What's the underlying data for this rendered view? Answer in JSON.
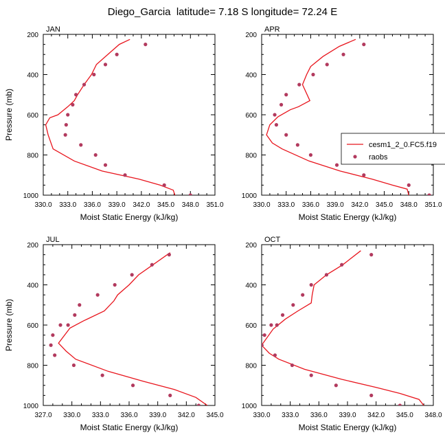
{
  "figure": {
    "title": "Diego_Garcia  latitude= 7.18 S longitude= 72.24 E",
    "ylabel": "Pressure (mb)",
    "xlabel": "Moist Static Energy (kJ/kg)"
  },
  "legend": {
    "model_label": "cesm1_2_0.FC5.f19",
    "obs_label": "raobs"
  },
  "colors": {
    "model": "#e8141c",
    "obs": "#b23a5e"
  },
  "chart_data": [
    {
      "type": "line",
      "title": "JAN",
      "xlabel": "Moist Static Energy (kJ/kg)",
      "ylabel": "Pressure (mb)",
      "xlim": [
        330,
        351
      ],
      "ylim": [
        1000,
        200
      ],
      "xticks": [
        "330.0",
        "333.0",
        "336.0",
        "339.0",
        "342.0",
        "345.0",
        "348.0",
        "351.0"
      ],
      "yticks": [
        "200",
        "400",
        "600",
        "800",
        "1000"
      ],
      "series": [
        {
          "name": "cesm1_2_0.FC5.f19",
          "kind": "line",
          "x": [
            340.6,
            339.3,
            337.9,
            336.5,
            335.9,
            335.0,
            334.2,
            333.8,
            333.0,
            331.8,
            330.8,
            330.3,
            330.6,
            331.2,
            333.8,
            337.2,
            341.7,
            344.3,
            345.9,
            346.1
          ],
          "y": [
            225,
            250,
            300,
            350,
            400,
            450,
            500,
            530,
            560,
            600,
            615,
            650,
            700,
            770,
            830,
            880,
            920,
            950,
            975,
            1000
          ]
        },
        {
          "name": "raobs",
          "kind": "scatter",
          "x": [
            342.5,
            339.0,
            337.6,
            336.2,
            335.0,
            334.0,
            333.6,
            333.0,
            332.8,
            332.7,
            334.6,
            336.4,
            337.6,
            340.0,
            344.8,
            348.0
          ],
          "y": [
            250,
            300,
            350,
            400,
            450,
            500,
            550,
            600,
            650,
            700,
            750,
            800,
            850,
            900,
            950,
            1000
          ]
        }
      ]
    },
    {
      "type": "line",
      "title": "APR",
      "xlabel": "Moist Static Energy (kJ/kg)",
      "ylabel": "Pressure (mb)",
      "xlim": [
        330,
        351
      ],
      "ylim": [
        1000,
        200
      ],
      "xticks": [
        "330.0",
        "333.0",
        "336.0",
        "339.0",
        "342.0",
        "345.0",
        "348.0",
        "351.0"
      ],
      "yticks": [
        "200",
        "400",
        "600",
        "800",
        "1000"
      ],
      "series": [
        {
          "name": "cesm1_2_0.FC5.f19",
          "kind": "line",
          "x": [
            341.5,
            339.5,
            337.5,
            336.0,
            335.5,
            335.0,
            335.9,
            334.5,
            333.5,
            332.0,
            331.0,
            330.6,
            331.3,
            332.5,
            335.8,
            339.6,
            343.5,
            346.0,
            347.8,
            348.0
          ],
          "y": [
            225,
            260,
            310,
            360,
            400,
            450,
            530,
            560,
            575,
            610,
            650,
            700,
            740,
            770,
            830,
            880,
            920,
            950,
            970,
            1000
          ]
        },
        {
          "name": "raobs",
          "kind": "scatter",
          "x": [
            342.5,
            340.0,
            338.0,
            336.3,
            334.6,
            333.0,
            332.4,
            331.6,
            331.8,
            333.0,
            334.4,
            336.0,
            339.2,
            342.5,
            348.0,
            350.5
          ],
          "y": [
            250,
            300,
            350,
            400,
            450,
            500,
            550,
            600,
            650,
            700,
            750,
            800,
            850,
            900,
            950,
            1000
          ]
        }
      ]
    },
    {
      "type": "line",
      "title": "JUL",
      "xlabel": "Moist Static Energy (kJ/kg)",
      "ylabel": "Pressure (mb)",
      "xlim": [
        327,
        345
      ],
      "ylim": [
        1000,
        200
      ],
      "xticks": [
        "327.0",
        "330.0",
        "333.0",
        "336.0",
        "339.0",
        "342.0",
        "345.0"
      ],
      "yticks": [
        "200",
        "400",
        "600",
        "800",
        "1000"
      ],
      "series": [
        {
          "name": "cesm1_2_0.FC5.f19",
          "kind": "line",
          "x": [
            340.3,
            338.5,
            337.0,
            336.0,
            334.8,
            334.4,
            333.4,
            331.2,
            329.8,
            328.6,
            329.4,
            330.4,
            333.8,
            337.5,
            340.7,
            343.0,
            344.2
          ],
          "y": [
            240,
            300,
            350,
            400,
            450,
            480,
            530,
            580,
            615,
            690,
            730,
            770,
            830,
            880,
            920,
            960,
            1000
          ]
        },
        {
          "name": "raobs",
          "kind": "scatter",
          "x": [
            340.2,
            338.4,
            336.3,
            334.5,
            332.7,
            330.8,
            330.3,
            329.6,
            328.8,
            328.0,
            327.8,
            328.2,
            330.2,
            333.2,
            336.4,
            340.3,
            343.3
          ],
          "y": [
            250,
            300,
            350,
            400,
            450,
            500,
            550,
            600,
            600,
            650,
            700,
            750,
            800,
            850,
            900,
            950,
            1000
          ]
        }
      ]
    },
    {
      "type": "line",
      "title": "OCT",
      "xlabel": "Moist Static Energy (kJ/kg)",
      "ylabel": "Pressure (mb)",
      "xlim": [
        330,
        348
      ],
      "ylim": [
        1000,
        200
      ],
      "xticks": [
        "330.0",
        "333.0",
        "336.0",
        "339.0",
        "342.0",
        "345.0",
        "348.0"
      ],
      "yticks": [
        "200",
        "400",
        "600",
        "800",
        "1000"
      ],
      "series": [
        {
          "name": "cesm1_2_0.FC5.f19",
          "kind": "line",
          "x": [
            340.4,
            338.5,
            336.8,
            335.5,
            335.3,
            335.2,
            333.8,
            332.5,
            331.2,
            330.0,
            330.8,
            331.8,
            334.5,
            338.4,
            342.0,
            344.5,
            346.5,
            347.0
          ],
          "y": [
            230,
            300,
            350,
            400,
            450,
            490,
            530,
            570,
            620,
            700,
            740,
            770,
            820,
            870,
            910,
            940,
            970,
            1000
          ]
        },
        {
          "name": "raobs",
          "kind": "scatter",
          "x": [
            341.5,
            338.4,
            336.8,
            335.2,
            334.3,
            333.3,
            332.2,
            331.6,
            331.0,
            330.3,
            330.0,
            331.4,
            333.2,
            335.2,
            337.8,
            341.5,
            344.5
          ],
          "y": [
            250,
            300,
            350,
            400,
            450,
            500,
            550,
            600,
            600,
            650,
            700,
            750,
            800,
            850,
            900,
            950,
            1000
          ]
        }
      ]
    }
  ]
}
